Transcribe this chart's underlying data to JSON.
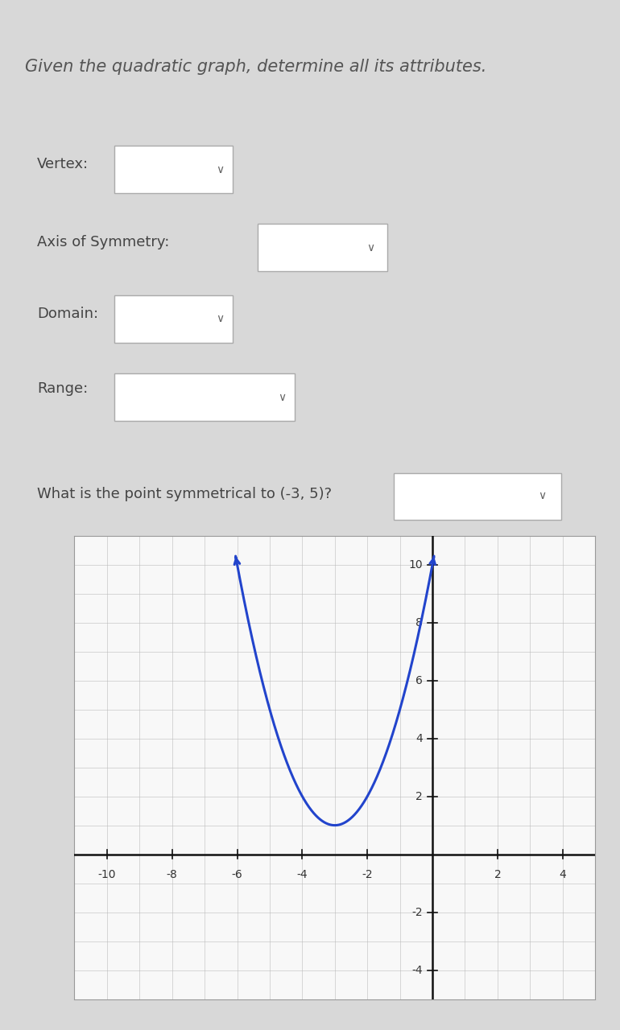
{
  "title": "Given the quadratic graph, determine all its attributes.",
  "title_fontsize": 15,
  "title_color": "#555555",
  "bg_color": "#d8d8d8",
  "labels": [
    "Vertex:",
    "Axis of Symmetry:",
    "Domain:",
    "Range:",
    "What is the point symmetrical to (-3, 5)?"
  ],
  "label_fontsize": 13,
  "label_color": "#444444",
  "box_color": "#ffffff",
  "box_edge_color": "#aaaaaa",
  "curve_color": "#2244cc",
  "curve_linewidth": 2.2,
  "vertex_x": -3,
  "vertex_y": 1,
  "parabola_a": 1,
  "xlim": [
    -11,
    5
  ],
  "ylim": [
    -5,
    11
  ],
  "xticks": [
    -10,
    -8,
    -6,
    -4,
    -2,
    2,
    4
  ],
  "yticks": [
    -4,
    -2,
    2,
    4,
    6,
    8,
    10
  ],
  "grid_color": "#bbbbbb",
  "grid_minor_color": "#dddddd",
  "axis_color": "#111111"
}
